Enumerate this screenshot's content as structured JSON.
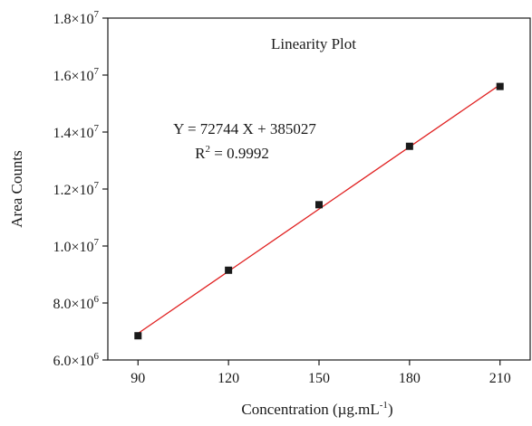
{
  "chart_data": {
    "type": "scatter",
    "title": "Linearity Plot",
    "xlabel": {
      "base": "Concentration (µg.mL",
      "sup": "-1",
      "tail": ")"
    },
    "ylabel": "Area Counts",
    "xlim": [
      80,
      220
    ],
    "ylim": [
      6000000,
      18000000
    ],
    "x_ticks": [
      90,
      120,
      150,
      180,
      210
    ],
    "x_tick_labels": [
      "90",
      "120",
      "150",
      "180",
      "210"
    ],
    "y_ticks": [
      6000000,
      8000000,
      10000000,
      12000000,
      14000000,
      16000000,
      18000000
    ],
    "y_tick_labels": [
      {
        "mant": "6.0×10",
        "exp": "6"
      },
      {
        "mant": "8.0×10",
        "exp": "6"
      },
      {
        "mant": "1.0×10",
        "exp": "7"
      },
      {
        "mant": "1.2×10",
        "exp": "7"
      },
      {
        "mant": "1.4×10",
        "exp": "7"
      },
      {
        "mant": "1.6×10",
        "exp": "7"
      },
      {
        "mant": "1.8×10",
        "exp": "7"
      }
    ],
    "grid": false,
    "series": [
      {
        "x": [
          90,
          120,
          150,
          180,
          210
        ],
        "y": [
          6850000,
          9150000,
          11450000,
          13500000,
          15600000
        ],
        "marker": "square",
        "color": "#1a1a1a"
      }
    ],
    "fit_line": {
      "slope": 72744,
      "intercept": 385027,
      "color": "#e02020"
    },
    "annotations": {
      "equation": "Y = 72744 X + 385027",
      "r2_prefix": "R",
      "r2_sup": "2",
      "r2_value": " = 0.9992"
    }
  }
}
